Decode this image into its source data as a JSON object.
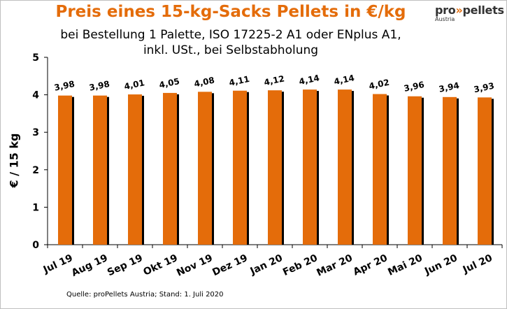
{
  "header": {
    "title": "Preis eines 15-kg-Sacks Pellets in €/kg",
    "subtitle_line1": "bei Bestellung 1 Palette, ISO 17225-2 A1 oder ENplus A1,",
    "subtitle_line2": "inkl. USt., bei Selbstabholung"
  },
  "logo": {
    "text_pro": "pro",
    "text_arrows": "»",
    "text_pellets": "pellets",
    "text_sub": "Austria"
  },
  "footer": {
    "source": "Quelle: proPellets Austria;  Stand: 1. Juli 2020"
  },
  "colors": {
    "bar_fill": "#E46C0A",
    "bar_shadow": "#000000",
    "title": "#E46C0A"
  },
  "chart_data": {
    "type": "bar",
    "title": "Preis eines 15-kg-Sacks Pellets in €/kg",
    "ylabel": "€ / 15 kg",
    "xlabel": "",
    "ylim": [
      0,
      5
    ],
    "yticks": [
      "0",
      "1",
      "2",
      "3",
      "4",
      "5"
    ],
    "grid": false,
    "categories": [
      "Jul 19",
      "Aug 19",
      "Sep 19",
      "Okt 19",
      "Nov 19",
      "Dez 19",
      "Jan 20",
      "Feb 20",
      "Mar 20",
      "Apr 20",
      "Mai 20",
      "Jun 20",
      "Jul 20"
    ],
    "values": [
      3.98,
      3.98,
      4.01,
      4.05,
      4.08,
      4.11,
      4.12,
      4.14,
      4.14,
      4.02,
      3.96,
      3.94,
      3.93
    ],
    "data_labels": [
      "3,98",
      "3,98",
      "4,01",
      "4,05",
      "4,08",
      "4,11",
      "4,12",
      "4,14",
      "4,14",
      "4,02",
      "3,96",
      "3,94",
      "3,93"
    ]
  }
}
